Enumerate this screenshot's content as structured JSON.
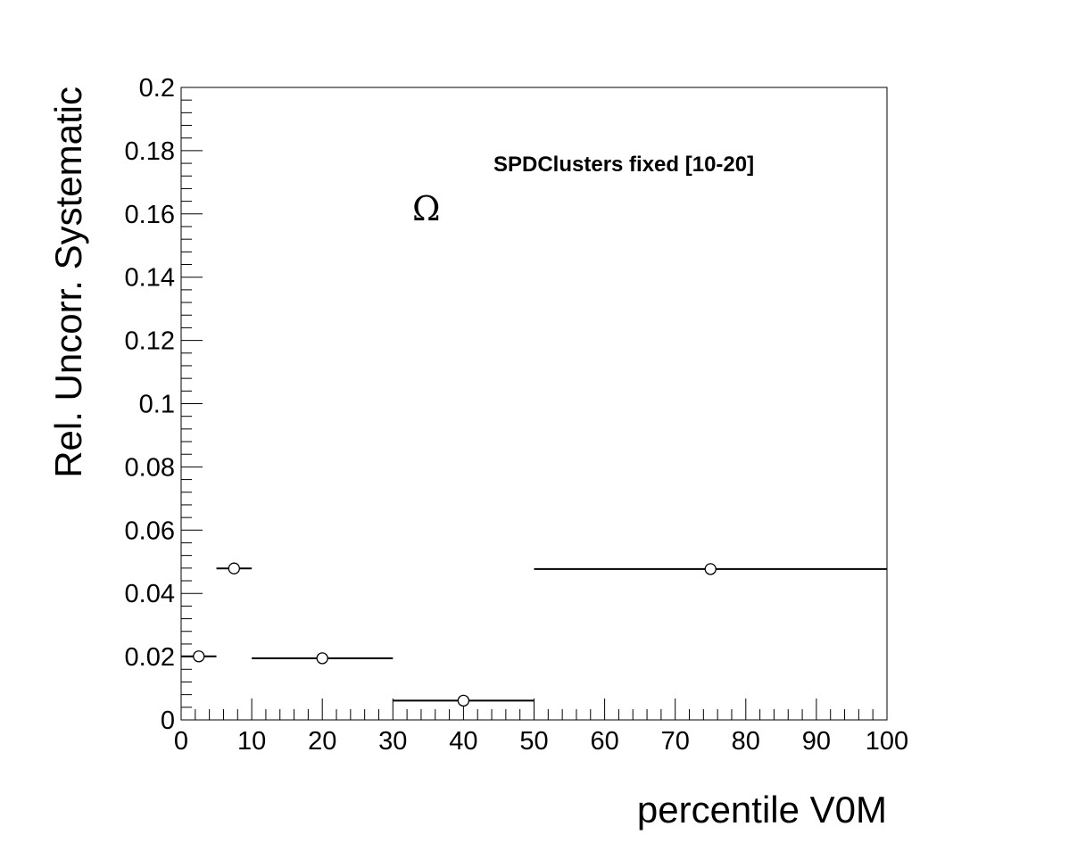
{
  "chart_data": {
    "type": "scatter",
    "xlabel": "percentile V0M",
    "ylabel": "Rel. Uncorr. Systematic",
    "xlim": [
      0,
      100
    ],
    "ylim": [
      0,
      0.2
    ],
    "grid": false,
    "x_ticks": [
      "0",
      "10",
      "20",
      "30",
      "40",
      "50",
      "60",
      "70",
      "80",
      "90",
      "100"
    ],
    "y_ticks": [
      "0",
      "0.02",
      "0.04",
      "0.06",
      "0.08",
      "0.1",
      "0.12",
      "0.14",
      "0.16",
      "0.18",
      "0.2"
    ],
    "annotations": [
      "SPDClusters fixed [10-20]",
      "Ω"
    ],
    "series": [
      {
        "points": [
          {
            "x": 2.5,
            "xerr": 2.5,
            "y": 0.0201
          },
          {
            "x": 7.5,
            "xerr": 2.5,
            "y": 0.0479
          },
          {
            "x": 20,
            "xerr": 10,
            "y": 0.0195
          },
          {
            "x": 40,
            "xerr": 10,
            "y": 0.0061
          },
          {
            "x": 75,
            "xerr": 25,
            "y": 0.0477
          }
        ]
      }
    ]
  }
}
